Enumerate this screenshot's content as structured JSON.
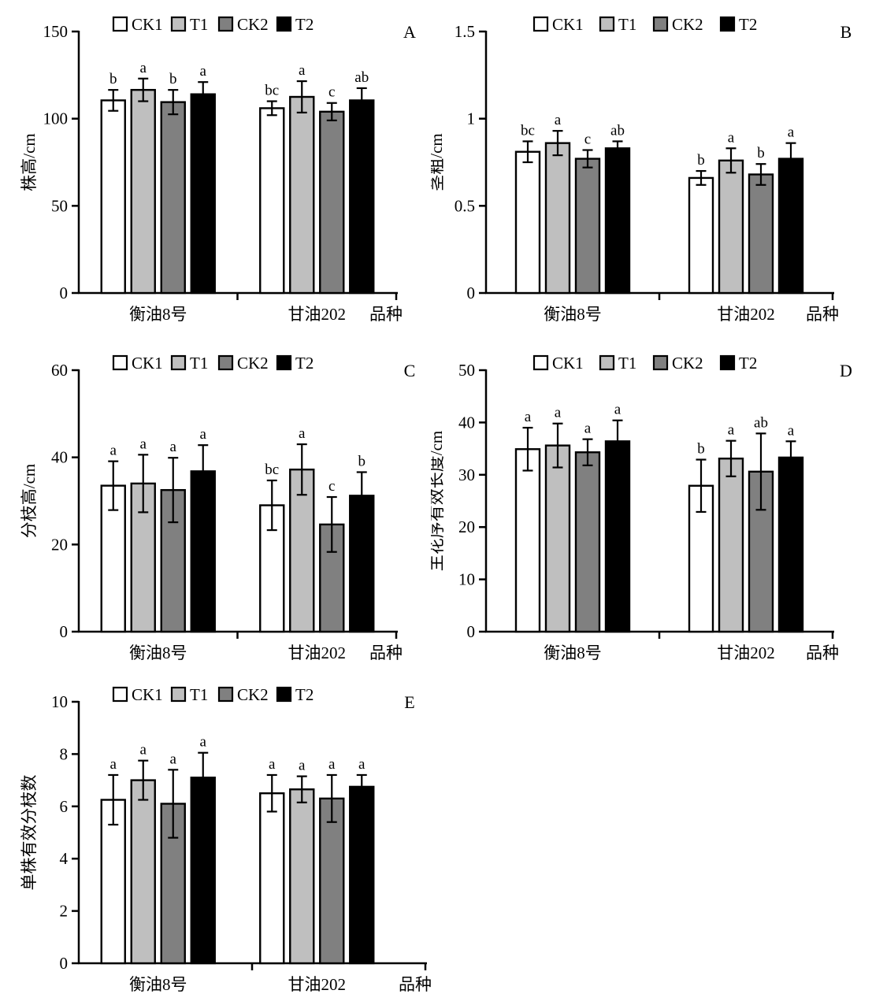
{
  "figure": {
    "background": "#FFFFFF",
    "axis_color": "#000000"
  },
  "legend": {
    "items": [
      {
        "label": "CK1",
        "fill": "#FFFFFF"
      },
      {
        "label": "T1",
        "fill": "#BFBFBF"
      },
      {
        "label": "CK2",
        "fill": "#808080"
      },
      {
        "label": "T2",
        "fill": "#000000"
      }
    ]
  },
  "chart_data": [
    {
      "panel": "A",
      "type": "bar",
      "title": "",
      "ylabel": "株高/cm",
      "xlabel": "品种",
      "ylim": [
        0,
        150
      ],
      "yticks": [
        0,
        50,
        100,
        150
      ],
      "grid": false,
      "legend_position": "top-inside",
      "categories": [
        "衡油8号",
        "甘油202"
      ],
      "series": [
        {
          "name": "CK1",
          "values": [
            110.5,
            106.0
          ],
          "errors": [
            6.0,
            4.0
          ],
          "letters": [
            "b",
            "bc"
          ]
        },
        {
          "name": "T1",
          "values": [
            116.5,
            112.5
          ],
          "errors": [
            6.5,
            9.0
          ],
          "letters": [
            "a",
            "a"
          ]
        },
        {
          "name": "CK2",
          "values": [
            109.5,
            104.0
          ],
          "errors": [
            7.0,
            5.0
          ],
          "letters": [
            "b",
            "c"
          ]
        },
        {
          "name": "T2",
          "values": [
            114.0,
            110.5
          ],
          "errors": [
            7.0,
            7.0
          ],
          "letters": [
            "a",
            "ab"
          ]
        }
      ]
    },
    {
      "panel": "B",
      "type": "bar",
      "title": "",
      "ylabel": "茎粗/cm",
      "xlabel": "品种",
      "ylim": [
        0,
        1.5
      ],
      "yticks": [
        0,
        0.5,
        1,
        1.5
      ],
      "grid": false,
      "legend_position": "top-inside",
      "categories": [
        "衡油8号",
        "甘油202"
      ],
      "series": [
        {
          "name": "CK1",
          "values": [
            0.81,
            0.66
          ],
          "errors": [
            0.06,
            0.04
          ],
          "letters": [
            "bc",
            "b"
          ]
        },
        {
          "name": "T1",
          "values": [
            0.86,
            0.76
          ],
          "errors": [
            0.07,
            0.07
          ],
          "letters": [
            "a",
            "a"
          ]
        },
        {
          "name": "CK2",
          "values": [
            0.77,
            0.68
          ],
          "errors": [
            0.05,
            0.06
          ],
          "letters": [
            "c",
            "b"
          ]
        },
        {
          "name": "T2",
          "values": [
            0.83,
            0.77
          ],
          "errors": [
            0.04,
            0.09
          ],
          "letters": [
            "ab",
            "a"
          ]
        }
      ]
    },
    {
      "panel": "C",
      "type": "bar",
      "title": "",
      "ylabel": "分枝高/cm",
      "xlabel": "品种",
      "ylim": [
        0,
        60
      ],
      "yticks": [
        0,
        20,
        40,
        60
      ],
      "grid": false,
      "legend_position": "top-inside",
      "categories": [
        "衡油8号",
        "甘油202"
      ],
      "series": [
        {
          "name": "CK1",
          "values": [
            33.5,
            29.0
          ],
          "errors": [
            5.6,
            5.7
          ],
          "letters": [
            "a",
            "bc"
          ]
        },
        {
          "name": "T1",
          "values": [
            34.0,
            37.2
          ],
          "errors": [
            6.6,
            5.8
          ],
          "letters": [
            "a",
            "a"
          ]
        },
        {
          "name": "CK2",
          "values": [
            32.5,
            24.6
          ],
          "errors": [
            7.4,
            6.3
          ],
          "letters": [
            "a",
            "c"
          ]
        },
        {
          "name": "T2",
          "values": [
            36.8,
            31.2
          ],
          "errors": [
            6.0,
            5.4
          ],
          "letters": [
            "a",
            "b"
          ]
        }
      ]
    },
    {
      "panel": "D",
      "type": "bar",
      "title": "",
      "ylabel": "主花序有效长度/cm",
      "xlabel": "品种",
      "ylim": [
        0,
        50
      ],
      "yticks": [
        0,
        10,
        20,
        30,
        40,
        50
      ],
      "grid": false,
      "legend_position": "top-inside",
      "categories": [
        "衡油8号",
        "甘油202"
      ],
      "series": [
        {
          "name": "CK1",
          "values": [
            34.9,
            27.9
          ],
          "errors": [
            4.1,
            5.0
          ],
          "letters": [
            "a",
            "b"
          ]
        },
        {
          "name": "T1",
          "values": [
            35.6,
            33.1
          ],
          "errors": [
            4.2,
            3.4
          ],
          "letters": [
            "a",
            "a"
          ]
        },
        {
          "name": "CK2",
          "values": [
            34.3,
            30.6
          ],
          "errors": [
            2.5,
            7.3
          ],
          "letters": [
            "a",
            "ab"
          ]
        },
        {
          "name": "T2",
          "values": [
            36.4,
            33.3
          ],
          "errors": [
            4.0,
            3.1
          ],
          "letters": [
            "a",
            "a"
          ]
        }
      ]
    },
    {
      "panel": "E",
      "type": "bar",
      "title": "",
      "ylabel": "单株有效分枝数",
      "xlabel": "品种",
      "ylim": [
        0,
        10
      ],
      "yticks": [
        0,
        2,
        4,
        6,
        8,
        10
      ],
      "grid": false,
      "legend_position": "top-inside",
      "categories": [
        "衡油8号",
        "甘油202"
      ],
      "series": [
        {
          "name": "CK1",
          "values": [
            6.25,
            6.5
          ],
          "errors": [
            0.95,
            0.7
          ],
          "letters": [
            "a",
            "a"
          ]
        },
        {
          "name": "T1",
          "values": [
            7.0,
            6.65
          ],
          "errors": [
            0.75,
            0.5
          ],
          "letters": [
            "a",
            "a"
          ]
        },
        {
          "name": "CK2",
          "values": [
            6.1,
            6.3
          ],
          "errors": [
            1.3,
            0.9
          ],
          "letters": [
            "a",
            "a"
          ]
        },
        {
          "name": "T2",
          "values": [
            7.1,
            6.75
          ],
          "errors": [
            0.95,
            0.45
          ],
          "letters": [
            "a",
            "a"
          ]
        }
      ]
    }
  ]
}
